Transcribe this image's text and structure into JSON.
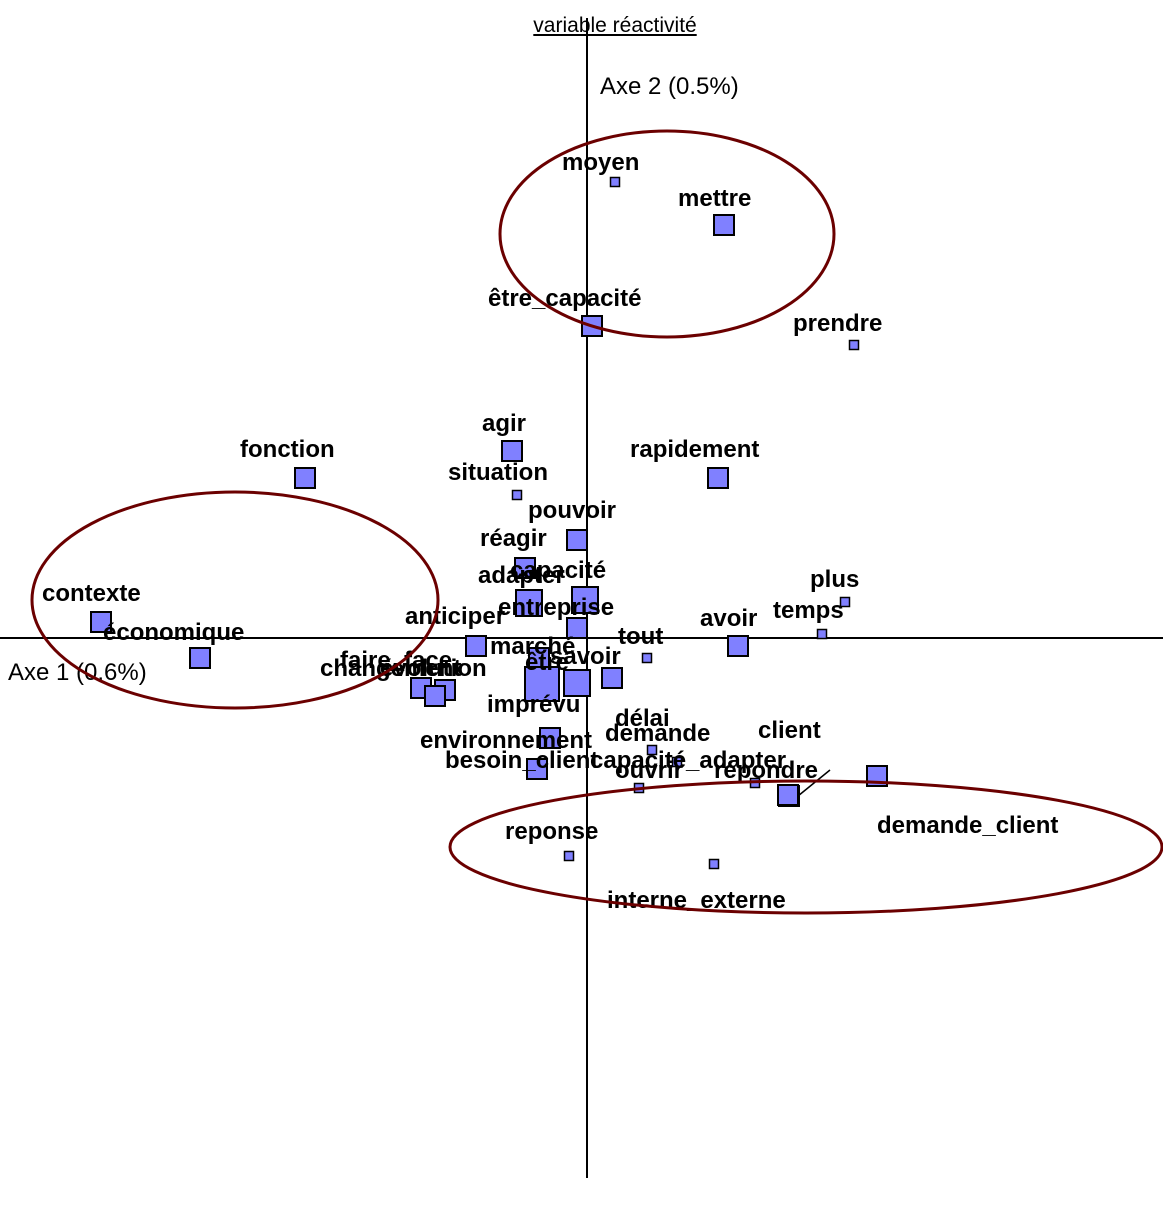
{
  "chart_data": {
    "type": "scatter",
    "title": "variable réactivité",
    "xlabel": "Axe 1 (0.6%)",
    "ylabel": "Axe 2 (0.5%)",
    "xlim": [
      -5.87,
      5.8
    ],
    "ylim": [
      -5.4,
      6.2
    ],
    "grid": false,
    "marker_color": "#8080ff",
    "ellipse_color": "#6b0000",
    "points": [
      {
        "label": "moyen",
        "x": 0.28,
        "y": 4.56,
        "size": 1
      },
      {
        "label": "mettre",
        "x": 1.37,
        "y": 4.13,
        "size": 2
      },
      {
        "label": "être_capacité",
        "x": 0.05,
        "y": 3.12,
        "size": 2
      },
      {
        "label": "prendre",
        "x": 2.67,
        "y": 2.93,
        "size": 1
      },
      {
        "label": "agir",
        "x": -0.75,
        "y": 1.87,
        "size": 2
      },
      {
        "label": "fonction",
        "x": -2.82,
        "y": 1.6,
        "size": 2
      },
      {
        "label": "rapidement",
        "x": 1.31,
        "y": 1.6,
        "size": 2
      },
      {
        "label": "situation",
        "x": -0.7,
        "y": 1.43,
        "size": 1
      },
      {
        "label": "pouvoir",
        "x": -0.1,
        "y": 0.98,
        "size": 2
      },
      {
        "label": "réagir",
        "x": -0.62,
        "y": 0.7,
        "size": 2
      },
      {
        "label": "capacité",
        "x": -0.02,
        "y": 0.38,
        "size": 3
      },
      {
        "label": "adapter",
        "x": -0.58,
        "y": 0.35,
        "size": 3
      },
      {
        "label": "entreprise",
        "x": -0.1,
        "y": 0.1,
        "size": 2
      },
      {
        "label": "plus",
        "x": 2.58,
        "y": 0.36,
        "size": 1
      },
      {
        "label": "contexte",
        "x": -4.86,
        "y": 0.16,
        "size": 2
      },
      {
        "label": "temps",
        "x": 2.35,
        "y": 0.04,
        "size": 1
      },
      {
        "label": "anticiper",
        "x": -1.11,
        "y": -0.08,
        "size": 2
      },
      {
        "label": "marché",
        "x": -0.48,
        "y": -0.2,
        "size": 2
      },
      {
        "label": "avoir",
        "x": 1.51,
        "y": -0.08,
        "size": 2
      },
      {
        "label": "tout",
        "x": 0.6,
        "y": -0.2,
        "size": 1
      },
      {
        "label": "savoir",
        "x": 0.25,
        "y": -0.4,
        "size": 2
      },
      {
        "label": "être",
        "x": -0.1,
        "y": -0.45,
        "size": 3
      },
      {
        "label": "économique",
        "x": -3.87,
        "y": -0.2,
        "size": 2
      },
      {
        "label": "faire_face",
        "x": -1.42,
        "y": -0.52,
        "size": 2
      },
      {
        "label": "changement",
        "x": -1.66,
        "y": -0.5,
        "size": 2
      },
      {
        "label": "évolution",
        "x": -1.52,
        "y": -0.58,
        "size": 2
      },
      {
        "label": "imprévu",
        "x": -0.45,
        "y": -0.46,
        "size": 4
      },
      {
        "label": "environnement",
        "x": -0.37,
        "y": -1.0,
        "size": 2
      },
      {
        "label": "délai",
        "x": 0.65,
        "y": -1.12,
        "size": 1
      },
      {
        "label": "demande",
        "x": 0.9,
        "y": -1.24,
        "size": 1
      },
      {
        "label": "client",
        "x": 1.68,
        "y": -1.45,
        "size": 1
      },
      {
        "label": "capacité_adapter",
        "x": 2.02,
        "y": -1.58,
        "size": 2
      },
      {
        "label": "répondre",
        "x": 2.9,
        "y": -1.38,
        "size": 2
      },
      {
        "label": "besoin_client",
        "x": -0.5,
        "y": -1.31,
        "size": 2
      },
      {
        "label": "ouvrir",
        "x": 0.52,
        "y": -1.5,
        "size": 1
      },
      {
        "label": "demande_client",
        "x": 2.01,
        "y": -1.57,
        "size": 2
      },
      {
        "label": "reponse",
        "x": -0.18,
        "y": -2.18,
        "size": 1
      },
      {
        "label": "interne_externe",
        "x": 1.27,
        "y": -2.26,
        "size": 1
      }
    ],
    "labels": [
      {
        "text": "moyen"
      },
      {
        "text": "mettre"
      },
      {
        "text": "être_capacité"
      },
      {
        "text": "prendre"
      },
      {
        "text": "agir"
      },
      {
        "text": "fonction"
      },
      {
        "text": "rapidement"
      },
      {
        "text": "situation"
      },
      {
        "text": "pouvoir"
      },
      {
        "text": "réagir"
      },
      {
        "text": "capacité"
      },
      {
        "text": "adapter"
      },
      {
        "text": "entreprise"
      },
      {
        "text": "plus"
      },
      {
        "text": "contexte"
      },
      {
        "text": "temps"
      },
      {
        "text": "anticiper"
      },
      {
        "text": "marché"
      },
      {
        "text": "avoir"
      },
      {
        "text": "tout"
      },
      {
        "text": "savoir"
      },
      {
        "text": "être"
      },
      {
        "text": "économique"
      },
      {
        "text": "faire_face"
      },
      {
        "text": "changement"
      },
      {
        "text": "évolution"
      },
      {
        "text": "imprévu"
      },
      {
        "text": "environnement"
      },
      {
        "text": "délai"
      },
      {
        "text": "demande"
      },
      {
        "text": "client"
      },
      {
        "text": "capacité_adapter"
      },
      {
        "text": "répondre"
      },
      {
        "text": "besoin_client"
      },
      {
        "text": "ouvrir"
      },
      {
        "text": "demande_client"
      },
      {
        "text": "reponse"
      },
      {
        "text": "interne_externe"
      }
    ],
    "ellipses": [
      {
        "name": "top-cluster",
        "cx": 0.8,
        "cy": 4.04,
        "rx": 1.67,
        "ry": 1.03
      },
      {
        "name": "left-cluster",
        "cx": -3.52,
        "cy": 0.38,
        "rx": 2.03,
        "ry": 1.08
      },
      {
        "name": "bottom-right-cluster",
        "cx": 2.19,
        "cy": -2.09,
        "rx": 3.56,
        "ry": 0.66
      }
    ]
  }
}
